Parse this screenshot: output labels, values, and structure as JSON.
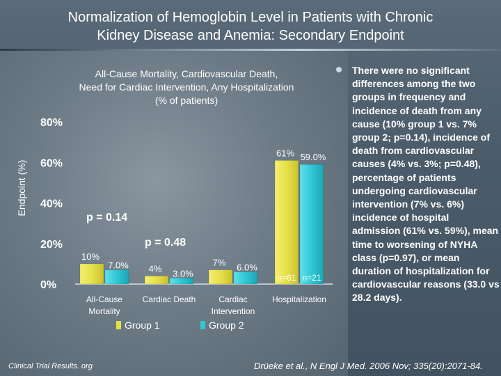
{
  "title": {
    "line1": "Normalization of Hemoglobin Level in Patients with Chronic",
    "line2": "Kidney Disease and Anemia: Secondary Endpoint"
  },
  "chart_data": {
    "type": "bar",
    "title_lines": [
      "All-Cause Mortality, Cardiovascular Death,",
      "Need for Cardiac Intervention, Any Hospitalization",
      "(% of patients)"
    ],
    "ylabel": "Endpoint (%)",
    "ylim": [
      0,
      80
    ],
    "yticks": [
      0,
      20,
      40,
      60,
      80
    ],
    "ytick_labels": [
      "0%",
      "20%",
      "40%",
      "60%",
      "80%"
    ],
    "categories": [
      [
        "All-Cause",
        "Mortality"
      ],
      [
        "Cardiac Death"
      ],
      [
        "Cardiac",
        "Intervention"
      ],
      [
        "Hospitalization"
      ]
    ],
    "series": [
      {
        "name": "Group 1",
        "color": "#e6e04a",
        "values": [
          10,
          4,
          7,
          61
        ],
        "labels": [
          "10%",
          "4%",
          "7%",
          "61%"
        ]
      },
      {
        "name": "Group 2",
        "color": "#2ec7d6",
        "values": [
          7.0,
          3.0,
          6.0,
          59.0
        ],
        "labels": [
          "7.0%",
          "3.0%",
          "6.0%",
          "59.0%"
        ]
      }
    ],
    "annotations": [
      "p = 0.14",
      "p = 0.48"
    ],
    "n_labels": [
      "n=61",
      "n=21"
    ],
    "legend_placement": "bottom",
    "grid": false
  },
  "bullet": "There were no significant differences among the two groups in frequency and incidence of death from any cause (10% group 1 vs. 7% group 2; p=0.14), incidence of death from cardiovascular causes (4% vs. 3%; p=0.48), percentage of patients undergoing cardiovascular intervention (7% vs. 6%) incidence of hospital admission (61% vs. 59%), mean time to worsening of NYHA class (p=0.97), or mean duration of hospitalization for cardiovascular reasons (33.0 vs 28.2 days).",
  "footer": {
    "left": "Clinical Trial Results. org",
    "right": "Drüeke et al., N Engl J Med. 2006 Nov; 335(20):2071-84."
  }
}
